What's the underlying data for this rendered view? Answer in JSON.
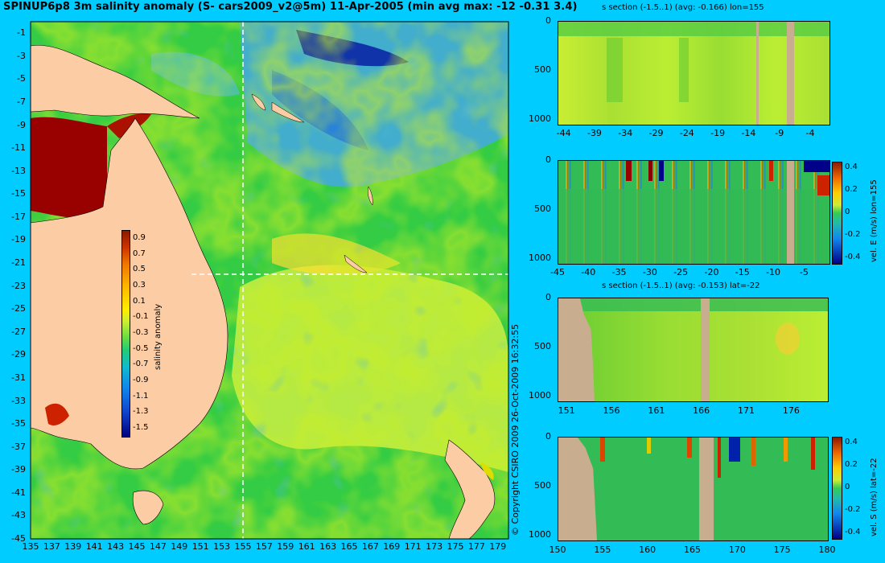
{
  "header": {
    "title": "SPINUP6p8 3m salinity anomaly (S- cars2009_v2@5m) 11-Apr-2005 (min avg max: -12 -0.31 3.4)"
  },
  "copyright": "© Copyright CSIRO 2009  26-Oct-2009 16:32:55",
  "colors": {
    "background": "#00ccff",
    "land": "#fccda4",
    "section_land": "#c8ad8e",
    "green": "#33cc33",
    "yellow": "#ccee44",
    "blue": "#2266ee",
    "red": "#cc2200",
    "darkred": "#990000"
  },
  "chart_data": [
    {
      "type": "heatmap",
      "name": "map",
      "title": "SPINUP6p8 3m salinity anomaly (S- cars2009_v2@5m) 11-Apr-2005 (min avg max: -12 -0.31 3.4)",
      "x_ticks": [
        "135",
        "137",
        "139",
        "141",
        "143",
        "145",
        "147",
        "149",
        "151",
        "153",
        "155",
        "157",
        "159",
        "161",
        "163",
        "165",
        "167",
        "169",
        "171",
        "173",
        "175",
        "177",
        "179"
      ],
      "y_ticks": [
        "-1",
        "-3",
        "-5",
        "-7",
        "-9",
        "-11",
        "-13",
        "-15",
        "-17",
        "-19",
        "-21",
        "-23",
        "-25",
        "-27",
        "-29",
        "-31",
        "-33",
        "-35",
        "-37",
        "-39",
        "-41",
        "-43",
        "-45"
      ],
      "xlim": [
        135,
        180
      ],
      "ylim": [
        -45,
        0
      ],
      "section_lines": {
        "lon": 155,
        "lat": -22
      },
      "colorbar": {
        "label": "salinity anomaly",
        "ticks": [
          "0.9",
          "0.7",
          "0.5",
          "0.3",
          "0.1",
          "-0.1",
          "-0.3",
          "-0.5",
          "-0.7",
          "-0.9",
          "-1.1",
          "-1.3",
          "-1.5"
        ],
        "range": [
          -1.6,
          1.0
        ]
      }
    },
    {
      "type": "heatmap",
      "name": "s-section-lon",
      "title": "s section (-1.5..1) (avg: -0.166) lon=155",
      "x_ticks": [
        "-44",
        "-39",
        "-34",
        "-29",
        "-24",
        "-19",
        "-14",
        "-9",
        "-4"
      ],
      "y_ticks": [
        "0",
        "500",
        "1000"
      ],
      "xlim": [
        -45,
        -1
      ],
      "ylim": [
        1050,
        0
      ]
    },
    {
      "type": "heatmap",
      "name": "vel-e-section",
      "title": "",
      "x_ticks": [
        "-45",
        "-40",
        "-35",
        "-30",
        "-25",
        "-20",
        "-15",
        "-10",
        "-5"
      ],
      "y_ticks": [
        "0",
        "500",
        "1000"
      ],
      "xlim": [
        -45,
        -1
      ],
      "ylim": [
        1050,
        0
      ],
      "colorbar": {
        "label": "vel. E (m/s) lon=155",
        "ticks": [
          "0.4",
          "0.2",
          "0",
          "-0.2",
          "-0.4"
        ],
        "range": [
          -0.45,
          0.45
        ]
      }
    },
    {
      "type": "heatmap",
      "name": "s-section-lat",
      "title": "s section (-1.5..1) (avg: -0.153) lat=-22",
      "x_ticks": [
        "151",
        "156",
        "161",
        "166",
        "171",
        "176"
      ],
      "y_ticks": [
        "0",
        "500",
        "1000"
      ],
      "xlim": [
        150,
        180
      ],
      "ylim": [
        1050,
        0
      ]
    },
    {
      "type": "heatmap",
      "name": "vel-s-section",
      "title": "",
      "x_ticks": [
        "150",
        "155",
        "160",
        "165",
        "170",
        "175",
        "180"
      ],
      "y_ticks": [
        "0",
        "500",
        "1000"
      ],
      "xlim": [
        150,
        180
      ],
      "ylim": [
        1050,
        0
      ],
      "colorbar": {
        "label": "vel. S (m/s) lat=-22",
        "ticks": [
          "0.4",
          "0.2",
          "0",
          "-0.2",
          "-0.4"
        ],
        "range": [
          -0.45,
          0.45
        ]
      }
    }
  ]
}
